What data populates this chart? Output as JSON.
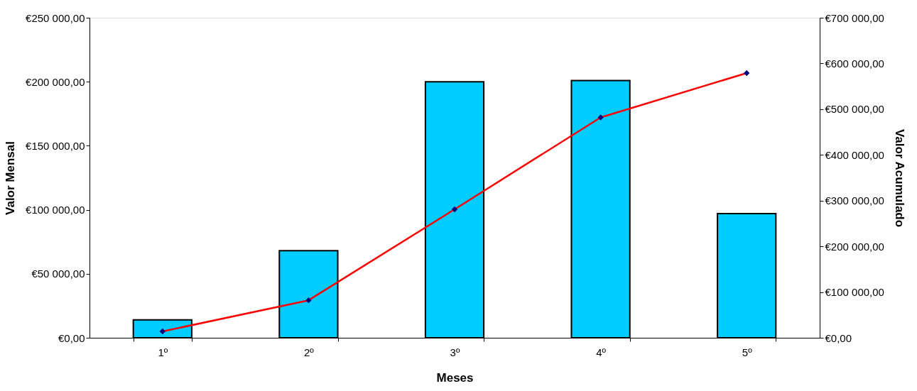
{
  "chart_data": {
    "type": "bar",
    "xlabel": "Meses",
    "ylabel": "Valor Mensal",
    "y2label": "Valor Acumulado",
    "categories": [
      "1º",
      "2º",
      "3º",
      "4º",
      "5º"
    ],
    "series": [
      {
        "color": "#00ccff",
        "values": [
          14000,
          68000,
          200000,
          201000,
          97000
        ]
      },
      {
        "type": "line",
        "axis": "y2",
        "color": "#ff0000",
        "marker": "diamond",
        "values": [
          14000,
          82000,
          281000,
          482000,
          579000
        ]
      }
    ],
    "ylim": [
      0,
      250000
    ],
    "yticks": [
      {
        "value": 0,
        "label": "€0,00"
      },
      {
        "value": 50000,
        "label": "€50 000,00"
      },
      {
        "value": 100000,
        "label": "€100 000,00"
      },
      {
        "value": 150000,
        "label": "€150 000,00"
      },
      {
        "value": 200000,
        "label": "€200 000,00"
      },
      {
        "value": 250000,
        "label": "€250 000,00"
      }
    ],
    "y2lim": [
      0,
      700000
    ],
    "y2ticks": [
      {
        "value": 0,
        "label": "€0,00"
      },
      {
        "value": 100000,
        "label": "€100 000,00"
      },
      {
        "value": 200000,
        "label": "€200 000,00"
      },
      {
        "value": 300000,
        "label": "€300 000,00"
      },
      {
        "value": 400000,
        "label": "€400 000,00"
      },
      {
        "value": 500000,
        "label": "€500 000,00"
      },
      {
        "value": 600000,
        "label": "€600 000,00"
      },
      {
        "value": 700000,
        "label": "€700 000,00"
      }
    ],
    "grid": false
  }
}
